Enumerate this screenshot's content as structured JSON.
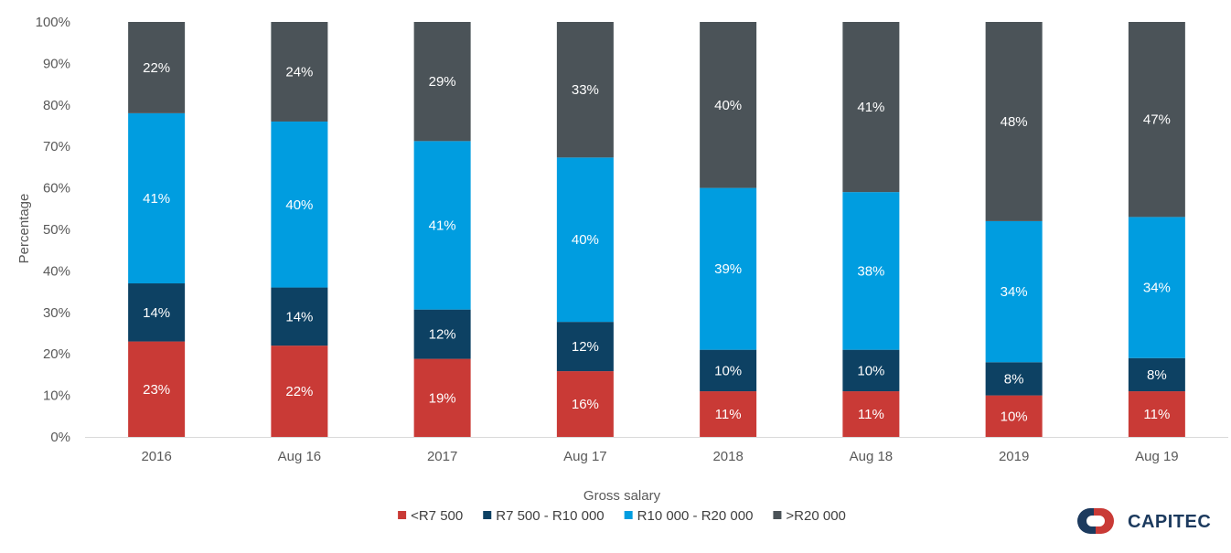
{
  "chart_data": {
    "type": "bar",
    "stacked": true,
    "categories": [
      "2016",
      "Aug 16",
      "2017",
      "Aug 17",
      "2018",
      "Aug 18",
      "2019",
      "Aug 19"
    ],
    "series": [
      {
        "name": "<R7 500",
        "color": "#c93a36",
        "values": [
          23,
          22,
          19,
          16,
          11,
          11,
          10,
          11
        ]
      },
      {
        "name": "R7 500 - R10 000",
        "color": "#0d4163",
        "values": [
          14,
          14,
          12,
          12,
          10,
          10,
          8,
          8
        ]
      },
      {
        "name": "R10 000 - R20 000",
        "color": "#009de0",
        "values": [
          41,
          40,
          41,
          40,
          39,
          38,
          34,
          34
        ]
      },
      {
        "name": ">R20 000",
        "color": "#4b5358",
        "values": [
          22,
          24,
          29,
          33,
          40,
          41,
          48,
          47
        ]
      }
    ],
    "xlabel": "Gross salary",
    "ylabel": "Percentage",
    "ylim": [
      0,
      100
    ],
    "yticks": [
      "0%",
      "10%",
      "20%",
      "30%",
      "40%",
      "50%",
      "60%",
      "70%",
      "80%",
      "90%",
      "100%"
    ],
    "grid": false,
    "legend_position": "bottom-center"
  },
  "logo": {
    "text": "CAPITEC",
    "icon": "capitec-logo-icon"
  }
}
